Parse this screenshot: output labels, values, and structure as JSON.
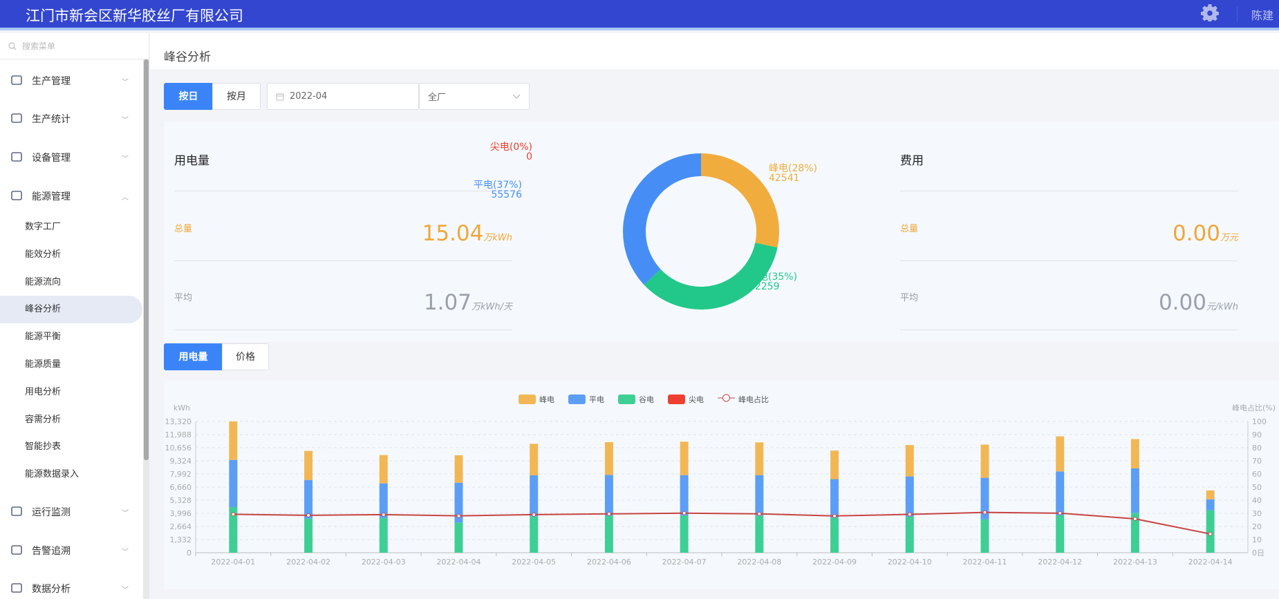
{
  "header": {
    "title": "江门市新会区新华胶丝厂有限公司",
    "user": "陈建",
    "settings_icon": "gear-icon"
  },
  "sidebar": {
    "search_placeholder": "搜索菜单",
    "groups_top": [
      {
        "label": "生产管理",
        "icon": "home-icon"
      },
      {
        "label": "生产统计",
        "icon": "stats-icon"
      },
      {
        "label": "设备管理",
        "icon": "device-icon"
      },
      {
        "label": "能源管理",
        "icon": "energy-drop-icon",
        "expanded": true
      }
    ],
    "sub_items": [
      "数字工厂",
      "能效分析",
      "能源流向",
      "峰谷分析",
      "能源平衡",
      "能源质量",
      "用电分析",
      "容需分析",
      "智能抄表",
      "能源数据录入"
    ],
    "active": "峰谷分析",
    "groups_bottom": [
      {
        "label": "运行监测",
        "icon": "monitor-icon"
      },
      {
        "label": "告警追溯",
        "icon": "alarm-icon"
      },
      {
        "label": "数据分析",
        "icon": "bar-chart-icon"
      }
    ]
  },
  "page": {
    "title": "峰谷分析"
  },
  "filters": {
    "by_day": "按日",
    "by_month": "按月",
    "selected": "按日",
    "date": "2022-04",
    "scope": "全厂"
  },
  "usage": {
    "title": "用电量",
    "total_label": "总量",
    "total_value": "15.04",
    "total_unit": "万kWh",
    "avg_label": "平均",
    "avg_value": "1.07",
    "avg_unit": "万kWh/天"
  },
  "cost": {
    "title": "费用",
    "total_label": "总量",
    "total_value": "0.00",
    "total_unit": "万元",
    "avg_label": "平均",
    "avg_value": "0.00",
    "avg_unit": "元/kWh"
  },
  "pie": {
    "slices": [
      {
        "name": "峰电",
        "label": "峰电(28%)",
        "value": 42541,
        "value_label": "42541",
        "color": "#f0ad3e"
      },
      {
        "name": "谷电",
        "label": "谷电(35%)",
        "value": 52259,
        "value_label": "52259",
        "color": "#22c88a"
      },
      {
        "name": "平电",
        "label": "平电(37%)",
        "value": 55576,
        "value_label": "55576",
        "color": "#468ef5"
      },
      {
        "name": "尖电",
        "label": "尖电(0%)",
        "value": 0,
        "value_label": "0",
        "color": "#ee3b2b"
      }
    ]
  },
  "chart_tabs": {
    "usage": "用电量",
    "price": "价格",
    "selected": "用电量"
  },
  "chart_data": {
    "type": "bar",
    "stacked": true,
    "categories": [
      "2022-04-01",
      "2022-04-02",
      "2022-04-03",
      "2022-04-04",
      "2022-04-05",
      "2022-04-06",
      "2022-04-07",
      "2022-04-08",
      "2022-04-09",
      "2022-04-10",
      "2022-04-11",
      "2022-04-12",
      "2022-04-13",
      "2022-04-14"
    ],
    "ylabel": "kWh",
    "y2label": "峰电占比(%)",
    "ylim": [
      0,
      13320
    ],
    "yticks": [
      "0",
      "1,332",
      "2,664",
      "3,996",
      "5,328",
      "6,660",
      "7,992",
      "9,324",
      "10,656",
      "11,988",
      "13,320"
    ],
    "y2lim": [
      0,
      100
    ],
    "y2ticks": [
      "0日",
      "10",
      "20",
      "30",
      "40",
      "50",
      "60",
      "70",
      "80",
      "90",
      "100"
    ],
    "grid": true,
    "legend_position": "top-center",
    "series": [
      {
        "name": "谷电",
        "color": "#3ecf95",
        "values": [
          4627,
          3458,
          3529,
          3061,
          3692,
          3739,
          3763,
          3763,
          3557,
          3650,
          3394,
          3789,
          4045,
          4300
        ]
      },
      {
        "name": "平电",
        "color": "#5c9ef5",
        "values": [
          4791,
          3926,
          3505,
          4043,
          4160,
          4160,
          4114,
          4114,
          3905,
          4091,
          4207,
          4463,
          4509,
          1116
        ]
      },
      {
        "name": "峰电",
        "color": "#f2b755",
        "values": [
          3902,
          2945,
          2874,
          2781,
          3201,
          3318,
          3387,
          3317,
          2906,
          3185,
          3371,
          3557,
          2976,
          907
        ]
      },
      {
        "name": "尖电",
        "color": "#ee4030",
        "values": [
          0,
          0,
          0,
          0,
          0,
          0,
          0,
          0,
          0,
          0,
          0,
          0,
          0,
          0
        ]
      },
      {
        "name": "峰电占比",
        "type": "line",
        "axis": "right",
        "color": "#c84343",
        "values": [
          29.3,
          28.5,
          29.0,
          28.1,
          29.0,
          29.6,
          30.1,
          29.6,
          28.0,
          29.2,
          30.7,
          30.1,
          25.8,
          14.3
        ]
      }
    ],
    "legend": [
      "峰电",
      "平电",
      "谷电",
      "尖电",
      "峰电占比"
    ]
  }
}
